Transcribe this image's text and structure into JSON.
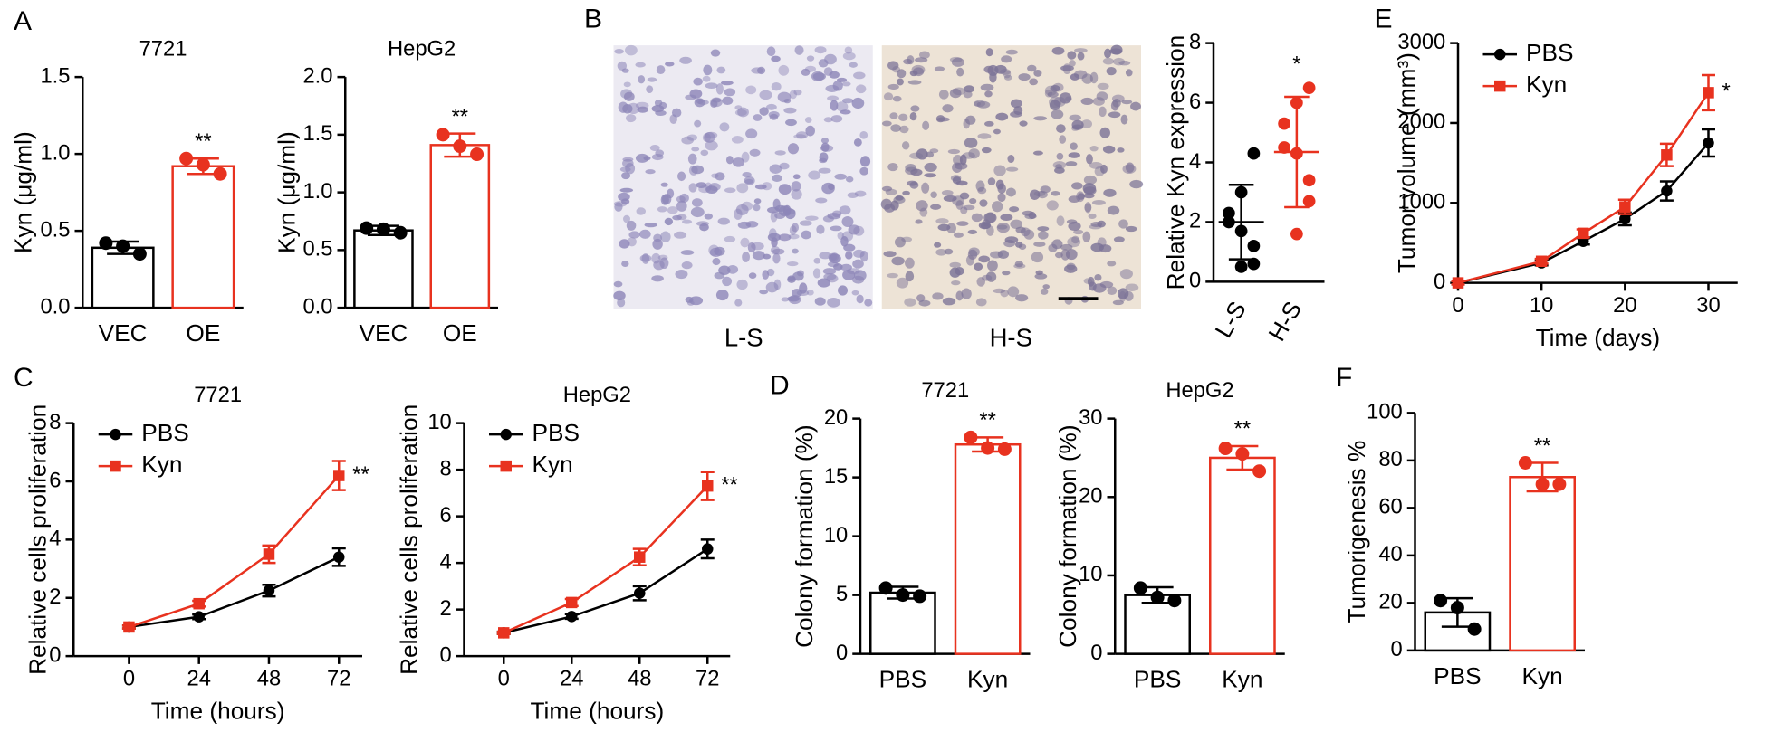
{
  "panel_labels": [
    "A",
    "B",
    "C",
    "D",
    "E",
    "F"
  ],
  "micrographs": {
    "labels": [
      "L-S",
      "H-S"
    ]
  },
  "chart_data": [
    {
      "type": "bar",
      "title": "7721",
      "ylabel": "Kyn (μg/ml)",
      "categories": [
        "VEC",
        "OE"
      ],
      "values": [
        0.39,
        0.92
      ],
      "errors": [
        0.04,
        0.05
      ],
      "points": [
        [
          0.42,
          0.4,
          0.35
        ],
        [
          0.97,
          0.93,
          0.87
        ]
      ],
      "colors": [
        "#000000",
        "#e8321f"
      ],
      "ylim": [
        0,
        1.5
      ],
      "yticks": [
        {
          "value": 0,
          "label": "0.0"
        },
        {
          "value": 0.5,
          "label": "0.5"
        },
        {
          "value": 1,
          "label": "1.0"
        },
        {
          "value": 1.5,
          "label": "1.5"
        }
      ],
      "significance": "**"
    },
    {
      "type": "bar",
      "title": "HepG2",
      "ylabel": "Kyn (μg/ml)",
      "categories": [
        "VEC",
        "OE"
      ],
      "values": [
        0.67,
        1.41
      ],
      "errors": [
        0.04,
        0.1
      ],
      "points": [
        [
          0.69,
          0.68,
          0.65
        ],
        [
          1.5,
          1.4,
          1.33
        ]
      ],
      "colors": [
        "#000000",
        "#e8321f"
      ],
      "ylim": [
        0,
        2
      ],
      "yticks": [
        {
          "value": 0,
          "label": "0.0"
        },
        {
          "value": 0.5,
          "label": "0.5"
        },
        {
          "value": 1,
          "label": "1.0"
        },
        {
          "value": 1.5,
          "label": "1.5"
        },
        {
          "value": 2,
          "label": "2.0"
        }
      ],
      "significance": "**"
    },
    {
      "type": "dot",
      "ylabel": "Relative Kyn expression",
      "categories": [
        "L-S",
        "H-S"
      ],
      "points": [
        [
          4.3,
          3.0,
          2.3,
          2.0,
          1.7,
          1.2,
          0.6,
          0.5
        ],
        [
          6.5,
          6.0,
          5.3,
          4.5,
          4.3,
          3.4,
          2.7,
          1.6
        ]
      ],
      "means": [
        2.0,
        4.35
      ],
      "sd": [
        1.25,
        1.85
      ],
      "colors": [
        "#000000",
        "#e8321f"
      ],
      "ylim": [
        0,
        8
      ],
      "yticks": [
        0,
        2,
        4,
        6,
        8
      ],
      "significance": "*"
    },
    {
      "type": "line",
      "ylabel": "Tumor volume (mm³)",
      "xlabel": "Time (days)",
      "x": [
        0,
        10,
        15,
        20,
        25,
        30
      ],
      "series": [
        {
          "name": "PBS",
          "color": "#000000",
          "marker": "circle",
          "values": [
            0,
            250,
            520,
            800,
            1150,
            1750
          ],
          "errors": [
            20,
            30,
            40,
            80,
            120,
            170
          ]
        },
        {
          "name": "Kyn",
          "color": "#e8321f",
          "marker": "square",
          "values": [
            0,
            270,
            620,
            950,
            1600,
            2380
          ],
          "errors": [
            20,
            30,
            50,
            90,
            140,
            220
          ]
        }
      ],
      "xlim": [
        0,
        33.5
      ],
      "xticks": [
        0,
        10,
        20,
        30
      ],
      "ylim": [
        0,
        3000
      ],
      "yticks": [
        0,
        1000,
        2000,
        3000
      ],
      "significance": "*"
    },
    {
      "type": "line",
      "title": "7721",
      "ylabel": "Relative cells proliferation",
      "xlabel": "Time (hours)",
      "x": [
        0,
        24,
        48,
        72
      ],
      "series": [
        {
          "name": "PBS",
          "color": "#000000",
          "marker": "circle",
          "values": [
            1,
            1.35,
            2.25,
            3.4
          ],
          "errors": [
            0.05,
            0.08,
            0.2,
            0.3
          ]
        },
        {
          "name": "Kyn",
          "color": "#e8321f",
          "marker": "square",
          "values": [
            1,
            1.8,
            3.5,
            6.2
          ],
          "errors": [
            0.05,
            0.1,
            0.3,
            0.5
          ]
        }
      ],
      "xlim": [
        -19,
        80
      ],
      "xticks": [
        0,
        24,
        48,
        72
      ],
      "ylim": [
        0,
        8
      ],
      "yticks": [
        0,
        2,
        4,
        6,
        8
      ],
      "significance": "**"
    },
    {
      "type": "line",
      "title": "HepG2",
      "ylabel": "Relative cells proliferation",
      "xlabel": "Time (hours)",
      "x": [
        0,
        24,
        48,
        72
      ],
      "series": [
        {
          "name": "PBS",
          "color": "#000000",
          "marker": "circle",
          "values": [
            1,
            1.7,
            2.7,
            4.6
          ],
          "errors": [
            0.05,
            0.1,
            0.3,
            0.4
          ]
        },
        {
          "name": "Kyn",
          "color": "#e8321f",
          "marker": "square",
          "values": [
            1,
            2.3,
            4.25,
            7.3
          ],
          "errors": [
            0.05,
            0.15,
            0.35,
            0.6
          ]
        }
      ],
      "xlim": [
        -14,
        80
      ],
      "xticks": [
        0,
        24,
        48,
        72
      ],
      "ylim": [
        0,
        10
      ],
      "yticks": [
        0,
        2,
        4,
        6,
        8,
        10
      ],
      "significance": "**"
    },
    {
      "type": "bar",
      "title": "7721",
      "ylabel": "Colony formation (%)",
      "categories": [
        "PBS",
        "Kyn"
      ],
      "values": [
        5.2,
        17.8
      ],
      "errors": [
        0.5,
        0.6
      ],
      "points": [
        [
          5.6,
          5.0,
          4.9
        ],
        [
          18.4,
          17.5,
          17.4
        ]
      ],
      "colors": [
        "#000000",
        "#e8321f"
      ],
      "ylim": [
        0,
        20
      ],
      "yticks": [
        0,
        5,
        10,
        15,
        20
      ],
      "significance": "**"
    },
    {
      "type": "bar",
      "title": "HepG2",
      "ylabel": "Colony formation (%)",
      "categories": [
        "PBS",
        "Kyn"
      ],
      "values": [
        7.5,
        25
      ],
      "errors": [
        1,
        1.5
      ],
      "points": [
        [
          8.4,
          7.2,
          6.8
        ],
        [
          26.2,
          25.5,
          23.3
        ]
      ],
      "colors": [
        "#000000",
        "#e8321f"
      ],
      "ylim": [
        0,
        30
      ],
      "yticks": [
        0,
        10,
        20,
        30
      ],
      "significance": "**"
    },
    {
      "type": "bar",
      "ylabel": "Tumorigenesis %",
      "categories": [
        "PBS",
        "Kyn"
      ],
      "values": [
        16,
        73
      ],
      "errors": [
        6,
        6
      ],
      "points": [
        [
          21,
          18,
          9
        ],
        [
          79,
          70,
          70
        ]
      ],
      "colors": [
        "#000000",
        "#e8321f"
      ],
      "ylim": [
        0,
        100
      ],
      "yticks": [
        0,
        20,
        40,
        60,
        80,
        100
      ],
      "significance": "**"
    }
  ]
}
